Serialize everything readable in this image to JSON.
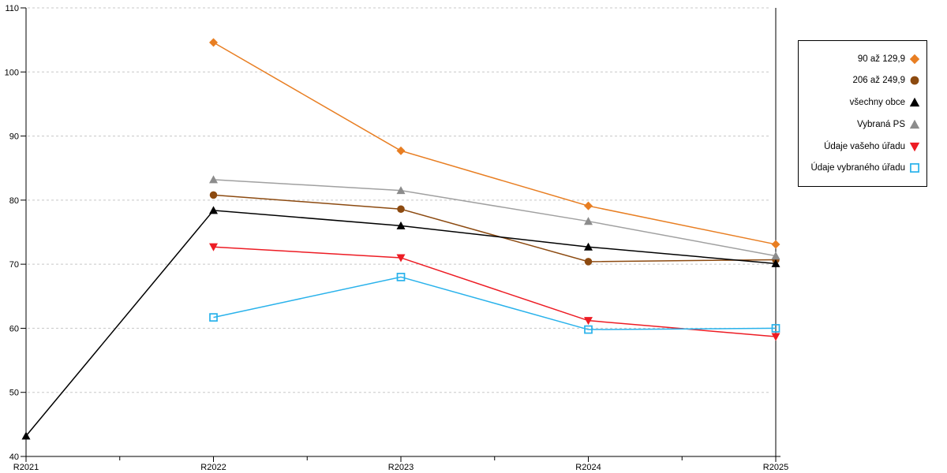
{
  "chart_data": {
    "type": "line",
    "categories": [
      "R2021",
      "R2022",
      "R2023",
      "R2024",
      "R2025"
    ],
    "ylim": [
      40,
      110
    ],
    "yticks": [
      40,
      50,
      60,
      70,
      80,
      90,
      100,
      110
    ],
    "xlabel": "",
    "ylabel": "",
    "title": "",
    "grid": "horizontal-dashed",
    "legend_position": "top-right-outside",
    "series": [
      {
        "name": "90 až 129,9",
        "marker": "diamond",
        "color": "#E87E22",
        "values": [
          null,
          104.6,
          87.7,
          79.1,
          73.1
        ]
      },
      {
        "name": "206 až 249,9",
        "marker": "circle",
        "color": "#8C4A10",
        "values": [
          null,
          80.8,
          78.6,
          70.4,
          70.7
        ]
      },
      {
        "name": "všechny obce",
        "marker": "triangle-up",
        "color": "#000000",
        "values": [
          43.2,
          78.4,
          76.0,
          72.7,
          70.1
        ]
      },
      {
        "name": "Vybraná PS",
        "marker": "triangle-up",
        "color": "#8C8C8C",
        "line_color": "#A0A0A0",
        "values": [
          null,
          83.2,
          81.5,
          76.7,
          71.3
        ]
      },
      {
        "name": "Údaje vašeho úřadu",
        "marker": "triangle-down",
        "color": "#ED1C24",
        "values": [
          null,
          72.7,
          71.0,
          61.2,
          58.7
        ]
      },
      {
        "name": "Údaje vybraného úřadu",
        "marker": "square-open",
        "color": "#29B2EB",
        "values": [
          null,
          61.7,
          68.0,
          59.8,
          60.0
        ]
      }
    ],
    "colors": {
      "axis": "#000000",
      "grid": "#C8C8C8",
      "background": "#FFFFFF",
      "text": "#000000"
    }
  }
}
